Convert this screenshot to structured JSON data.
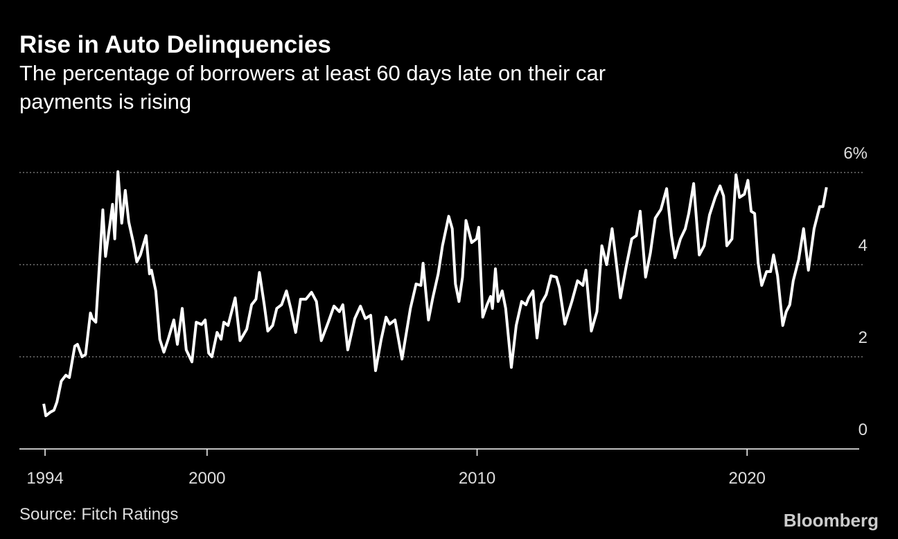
{
  "chart_data": {
    "type": "line",
    "title": "Rise in Auto Delinquencies",
    "subtitle": "The percentage of borrowers at least 60 days late on their car payments is rising",
    "source": "Source: Fitch Ratings",
    "brand": "Bloomberg",
    "x": [
      1993.95,
      1994.03,
      1994.2,
      1994.33,
      1994.44,
      1994.6,
      1994.77,
      1994.9,
      1995.1,
      1995.2,
      1995.37,
      1995.5,
      1995.68,
      1995.75,
      1995.88,
      1996.14,
      1996.24,
      1996.4,
      1996.5,
      1996.58,
      1996.7,
      1996.84,
      1996.97,
      1997.1,
      1997.27,
      1997.4,
      1997.53,
      1997.74,
      1997.87,
      1997.94,
      1998.1,
      1998.25,
      1998.4,
      1998.56,
      1998.77,
      1998.9,
      1999.08,
      1999.23,
      1999.44,
      1999.6,
      1999.8,
      1999.93,
      2000.06,
      2000.18,
      2000.37,
      2000.52,
      2000.62,
      2000.78,
      2001.04,
      2001.22,
      2001.47,
      2001.65,
      2001.81,
      2001.94,
      2002.12,
      2002.25,
      2002.43,
      2002.58,
      2002.76,
      2002.94,
      2003.1,
      2003.28,
      2003.46,
      2003.66,
      2003.87,
      2004.05,
      2004.23,
      2004.49,
      2004.7,
      2004.9,
      2005.03,
      2005.21,
      2005.47,
      2005.68,
      2005.86,
      2006.06,
      2006.24,
      2006.45,
      2006.63,
      2006.76,
      2006.96,
      2007.22,
      2007.53,
      2007.74,
      2007.92,
      2008.0,
      2008.2,
      2008.36,
      2008.56,
      2008.72,
      2008.95,
      2009.08,
      2009.2,
      2009.33,
      2009.46,
      2009.59,
      2009.8,
      2009.98,
      2010.06,
      2010.21,
      2010.37,
      2010.5,
      2010.57,
      2010.68,
      2010.78,
      2010.93,
      2011.06,
      2011.27,
      2011.45,
      2011.65,
      2011.81,
      2011.91,
      2012.07,
      2012.22,
      2012.38,
      2012.56,
      2012.74,
      2012.94,
      2013.05,
      2013.25,
      2013.51,
      2013.72,
      2013.92,
      2014.03,
      2014.23,
      2014.44,
      2014.62,
      2014.8,
      2015.0,
      2015.13,
      2015.31,
      2015.52,
      2015.73,
      2015.9,
      2016.04,
      2016.24,
      2016.42,
      2016.6,
      2016.81,
      2017.02,
      2017.2,
      2017.33,
      2017.53,
      2017.71,
      2017.84,
      2018.02,
      2018.23,
      2018.41,
      2018.61,
      2018.82,
      2019.0,
      2019.13,
      2019.25,
      2019.44,
      2019.59,
      2019.72,
      2019.9,
      2020.03,
      2020.15,
      2020.28,
      2020.41,
      2020.54,
      2020.72,
      2020.87,
      2020.98,
      2021.13,
      2021.32,
      2021.45,
      2021.58,
      2021.71,
      2021.91,
      2022.09,
      2022.27,
      2022.48,
      2022.69,
      2022.81,
      2022.94
    ],
    "series": [
      {
        "color": "#ffffff",
        "values": [
          0.98,
          0.72,
          0.8,
          0.84,
          1.02,
          1.47,
          1.6,
          1.55,
          2.23,
          2.27,
          2.0,
          2.05,
          2.95,
          2.83,
          2.75,
          5.19,
          4.18,
          4.86,
          5.31,
          4.56,
          6.02,
          4.9,
          5.61,
          4.93,
          4.48,
          4.06,
          4.21,
          4.63,
          3.8,
          3.88,
          3.43,
          2.38,
          2.1,
          2.38,
          2.8,
          2.27,
          3.05,
          2.15,
          1.89,
          2.75,
          2.7,
          2.8,
          2.08,
          2.0,
          2.53,
          2.38,
          2.75,
          2.68,
          3.28,
          2.35,
          2.6,
          3.13,
          3.25,
          3.83,
          3.13,
          2.56,
          2.68,
          3.05,
          3.13,
          3.43,
          3.05,
          2.53,
          3.25,
          3.25,
          3.4,
          3.2,
          2.35,
          2.75,
          3.1,
          2.98,
          3.13,
          2.15,
          2.83,
          3.1,
          2.83,
          2.9,
          1.7,
          2.38,
          2.86,
          2.71,
          2.8,
          1.95,
          3.05,
          3.58,
          3.55,
          4.03,
          2.8,
          3.28,
          3.8,
          4.41,
          5.05,
          4.78,
          3.58,
          3.2,
          3.73,
          4.96,
          4.48,
          4.56,
          4.81,
          2.86,
          3.13,
          3.31,
          3.05,
          3.91,
          3.2,
          3.43,
          3.05,
          1.77,
          2.68,
          3.2,
          3.13,
          3.28,
          3.43,
          2.41,
          3.16,
          3.35,
          3.76,
          3.73,
          3.5,
          2.71,
          3.2,
          3.65,
          3.55,
          3.88,
          2.56,
          2.98,
          4.41,
          4.0,
          4.78,
          4.18,
          3.28,
          3.95,
          4.56,
          4.63,
          5.16,
          3.73,
          4.26,
          5.01,
          5.2,
          5.65,
          4.63,
          4.15,
          4.56,
          4.78,
          5.11,
          5.76,
          4.21,
          4.41,
          5.08,
          5.46,
          5.71,
          5.49,
          4.41,
          4.56,
          5.95,
          5.46,
          5.53,
          5.83,
          5.16,
          5.11,
          4.03,
          3.55,
          3.85,
          3.85,
          4.21,
          3.76,
          2.68,
          2.98,
          3.13,
          3.65,
          4.11,
          4.78,
          3.88,
          4.78,
          5.26,
          5.26,
          5.68
        ]
      }
    ],
    "xlim": [
      1993.05,
      2024.28
    ],
    "xticks": [
      1994,
      2000,
      2010,
      2020
    ],
    "ylim": [
      0,
      6
    ],
    "yticks": [
      0,
      2,
      4,
      {
        "value": 6,
        "label": "6%"
      }
    ],
    "grid": true
  }
}
